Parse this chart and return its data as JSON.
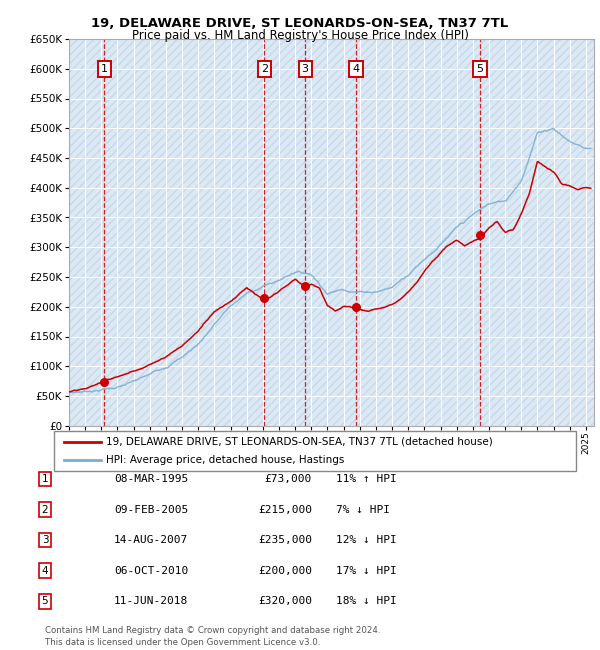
{
  "title": "19, DELAWARE DRIVE, ST LEONARDS-ON-SEA, TN37 7TL",
  "subtitle": "Price paid vs. HM Land Registry's House Price Index (HPI)",
  "legend_line1": "19, DELAWARE DRIVE, ST LEONARDS-ON-SEA, TN37 7TL (detached house)",
  "legend_line2": "HPI: Average price, detached house, Hastings",
  "footer": "Contains HM Land Registry data © Crown copyright and database right 2024.\nThis data is licensed under the Open Government Licence v3.0.",
  "ylim": [
    0,
    650000
  ],
  "ytick_step": 50000,
  "sale_dates_x": [
    1995.18,
    2005.1,
    2007.62,
    2010.76,
    2018.44
  ],
  "sale_prices_y": [
    73000,
    215000,
    235000,
    200000,
    320000
  ],
  "sale_labels": [
    "1",
    "2",
    "3",
    "4",
    "5"
  ],
  "table_rows": [
    [
      "1",
      "08-MAR-1995",
      "£73,000",
      "11% ↑ HPI"
    ],
    [
      "2",
      "09-FEB-2005",
      "£215,000",
      "7% ↓ HPI"
    ],
    [
      "3",
      "14-AUG-2007",
      "£235,000",
      "12% ↓ HPI"
    ],
    [
      "4",
      "06-OCT-2010",
      "£200,000",
      "17% ↓ HPI"
    ],
    [
      "5",
      "11-JUN-2018",
      "£320,000",
      "18% ↓ HPI"
    ]
  ],
  "hpi_color": "#7aaed4",
  "sale_color": "#cc0000",
  "bg_color": "#dce9f5",
  "grid_color": "#ffffff",
  "xmin": 1993,
  "xmax": 2025.5,
  "hpi_segments": [
    [
      1993,
      55000
    ],
    [
      1994,
      58000
    ],
    [
      1995,
      62000
    ],
    [
      1996,
      67000
    ],
    [
      1997,
      75000
    ],
    [
      1998,
      85000
    ],
    [
      1999,
      100000
    ],
    [
      2000,
      118000
    ],
    [
      2001,
      140000
    ],
    [
      2002,
      175000
    ],
    [
      2003,
      205000
    ],
    [
      2004,
      225000
    ],
    [
      2005,
      238000
    ],
    [
      2006,
      248000
    ],
    [
      2007,
      265000
    ],
    [
      2008,
      262000
    ],
    [
      2009,
      232000
    ],
    [
      2010,
      240000
    ],
    [
      2011,
      238000
    ],
    [
      2012,
      240000
    ],
    [
      2013,
      248000
    ],
    [
      2014,
      272000
    ],
    [
      2015,
      300000
    ],
    [
      2016,
      325000
    ],
    [
      2017,
      350000
    ],
    [
      2018,
      370000
    ],
    [
      2019,
      388000
    ],
    [
      2020,
      392000
    ],
    [
      2021,
      430000
    ],
    [
      2022,
      510000
    ],
    [
      2023,
      520000
    ],
    [
      2024,
      498000
    ],
    [
      2025,
      488000
    ]
  ],
  "red_segments": [
    [
      1993.0,
      57000
    ],
    [
      1994.0,
      60000
    ],
    [
      1995.18,
      73000
    ],
    [
      1996,
      80000
    ],
    [
      1997,
      90000
    ],
    [
      1998,
      103000
    ],
    [
      1999,
      118000
    ],
    [
      2000,
      137000
    ],
    [
      2001,
      162000
    ],
    [
      2002,
      196000
    ],
    [
      2003,
      215000
    ],
    [
      2004,
      238000
    ],
    [
      2005.1,
      215000
    ],
    [
      2005.5,
      220000
    ],
    [
      2006,
      228000
    ],
    [
      2007.0,
      248000
    ],
    [
      2007.62,
      235000
    ],
    [
      2008.0,
      240000
    ],
    [
      2008.5,
      235000
    ],
    [
      2009.0,
      205000
    ],
    [
      2009.5,
      195000
    ],
    [
      2010.0,
      202000
    ],
    [
      2010.76,
      200000
    ],
    [
      2011.0,
      198000
    ],
    [
      2011.5,
      197000
    ],
    [
      2012.0,
      200000
    ],
    [
      2012.5,
      202000
    ],
    [
      2013.0,
      208000
    ],
    [
      2013.5,
      218000
    ],
    [
      2014.0,
      232000
    ],
    [
      2014.5,
      248000
    ],
    [
      2015.0,
      268000
    ],
    [
      2015.5,
      285000
    ],
    [
      2016.0,
      300000
    ],
    [
      2016.5,
      312000
    ],
    [
      2017.0,
      320000
    ],
    [
      2017.5,
      310000
    ],
    [
      2018.0,
      318000
    ],
    [
      2018.44,
      320000
    ],
    [
      2019.0,
      340000
    ],
    [
      2019.5,
      348000
    ],
    [
      2020.0,
      330000
    ],
    [
      2020.5,
      335000
    ],
    [
      2021.0,
      360000
    ],
    [
      2021.5,
      395000
    ],
    [
      2022.0,
      450000
    ],
    [
      2022.5,
      440000
    ],
    [
      2023.0,
      430000
    ],
    [
      2023.5,
      410000
    ],
    [
      2024.0,
      405000
    ],
    [
      2024.5,
      398000
    ],
    [
      2025.0,
      400000
    ]
  ]
}
